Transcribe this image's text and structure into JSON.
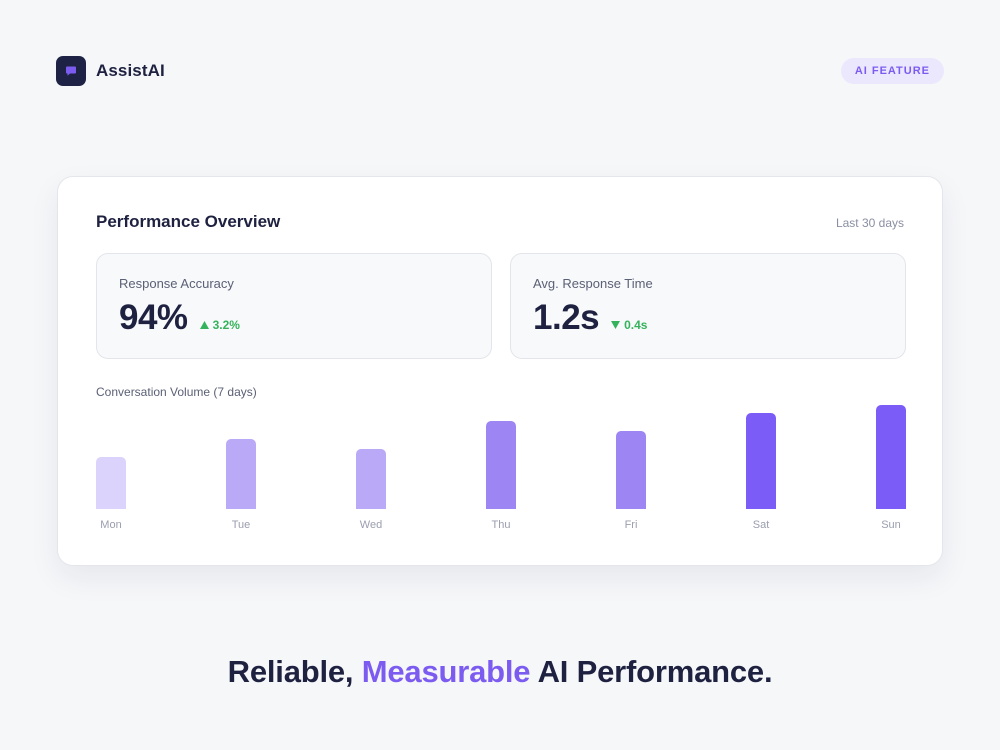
{
  "brand": {
    "name": "AssistAI",
    "icon": "chat-bubble-icon",
    "logo_bg": "#1e2346",
    "icon_color": "#7c5cf0"
  },
  "badge": {
    "label": "AI FEATURE"
  },
  "card": {
    "title": "Performance Overview",
    "range": "Last 30 days",
    "metrics": [
      {
        "label": "Response Accuracy",
        "value": "94%",
        "delta": "3.2%",
        "direction": "up",
        "delta_icon": "triangle-up-icon"
      },
      {
        "label": "Avg. Response Time",
        "value": "1.2s",
        "delta": "0.4s",
        "direction": "down",
        "delta_icon": "triangle-down-icon"
      }
    ],
    "chart_label": "Conversation Volume (7 days)"
  },
  "chart_data": {
    "type": "bar",
    "categories": [
      "Mon",
      "Tue",
      "Wed",
      "Thu",
      "Fri",
      "Sat",
      "Sun"
    ],
    "values": [
      52,
      70,
      60,
      88,
      78,
      96,
      104
    ],
    "ylim": [
      0,
      104
    ],
    "grid": false,
    "bar_colors": [
      "#dbd3fb",
      "#b9a9f7",
      "#b9a9f7",
      "#9d86f3",
      "#9d86f3",
      "#7c5cf7",
      "#7c5cf7"
    ]
  },
  "tagline": {
    "before": "Reliable, ",
    "accent": "Measurable",
    "after": " AI Performance."
  },
  "colors": {
    "accent": "#7c5cf0",
    "positive": "#34b35c",
    "text": "#1e2140",
    "background": "#f6f7f9"
  }
}
